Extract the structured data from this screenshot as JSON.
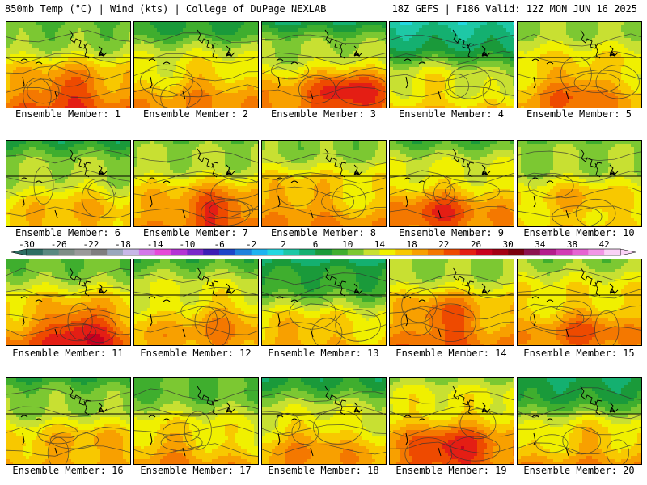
{
  "header": {
    "left": "850mb Temp (°C) | Wind (kts) | College of DuPage NEXLAB",
    "right": "18Z GEFS | F186 Valid: 12Z MON JUN 16 2025"
  },
  "colorbar": {
    "tick_labels": [
      "-30",
      "-26",
      "-22",
      "-18",
      "-14",
      "-10",
      "-6",
      "-2",
      "2",
      "6",
      "10",
      "14",
      "18",
      "22",
      "26",
      "30",
      "34",
      "38",
      "42"
    ],
    "bins": [
      {
        "min": -30,
        "color": "#2e6f63"
      },
      {
        "min": -28,
        "color": "#5a8a80"
      },
      {
        "min": -26,
        "color": "#7e8e86"
      },
      {
        "min": -24,
        "color": "#9a9a9a"
      },
      {
        "min": -22,
        "color": "#7f7f7f"
      },
      {
        "min": -20,
        "color": "#9aa8bc"
      },
      {
        "min": -18,
        "color": "#c8b8e8"
      },
      {
        "min": -16,
        "color": "#d478e8"
      },
      {
        "min": -14,
        "color": "#e64ad8"
      },
      {
        "min": -12,
        "color": "#b434d4"
      },
      {
        "min": -10,
        "color": "#7a28c8"
      },
      {
        "min": -8,
        "color": "#3c1eb4"
      },
      {
        "min": -6,
        "color": "#1c46c8"
      },
      {
        "min": -4,
        "color": "#1e82dc"
      },
      {
        "min": -2,
        "color": "#1eb4f0"
      },
      {
        "min": 0,
        "color": "#22d8e0"
      },
      {
        "min": 2,
        "color": "#1ec8a6"
      },
      {
        "min": 4,
        "color": "#14b070"
      },
      {
        "min": 6,
        "color": "#1a9a3a"
      },
      {
        "min": 8,
        "color": "#3fae2e"
      },
      {
        "min": 10,
        "color": "#7cc832"
      },
      {
        "min": 12,
        "color": "#c8e032"
      },
      {
        "min": 14,
        "color": "#f0f000"
      },
      {
        "min": 16,
        "color": "#f8c800"
      },
      {
        "min": 18,
        "color": "#f8a000"
      },
      {
        "min": 20,
        "color": "#f47800"
      },
      {
        "min": 22,
        "color": "#ee4a00"
      },
      {
        "min": 24,
        "color": "#e41e14"
      },
      {
        "min": 26,
        "color": "#c8001e"
      },
      {
        "min": 28,
        "color": "#a40014"
      },
      {
        "min": 30,
        "color": "#7a000e"
      },
      {
        "min": 32,
        "color": "#8c1450"
      },
      {
        "min": 34,
        "color": "#b41e8c"
      },
      {
        "min": 36,
        "color": "#d23cb4"
      },
      {
        "min": 38,
        "color": "#e664d2"
      },
      {
        "min": 40,
        "color": "#f296e6"
      },
      {
        "min": 42,
        "color": "#fad2f6"
      }
    ]
  },
  "members": [
    {
      "label": "Ensemble Member: 1",
      "north_temp": 9,
      "south_temp": 21,
      "hot_spot": 26
    },
    {
      "label": "Ensemble Member: 2",
      "north_temp": 8,
      "south_temp": 19,
      "hot_spot": 22
    },
    {
      "label": "Ensemble Member: 3",
      "north_temp": 7,
      "south_temp": 21,
      "hot_spot": 28
    },
    {
      "label": "Ensemble Member: 4",
      "north_temp": 2,
      "south_temp": 17,
      "hot_spot": 20
    },
    {
      "label": "Ensemble Member: 5",
      "north_temp": 12,
      "south_temp": 18,
      "hot_spot": 23
    },
    {
      "label": "Ensemble Member: 6",
      "north_temp": 8,
      "south_temp": 18,
      "hot_spot": 20
    },
    {
      "label": "Ensemble Member: 7",
      "north_temp": 10,
      "south_temp": 20,
      "hot_spot": 26
    },
    {
      "label": "Ensemble Member: 8",
      "north_temp": 11,
      "south_temp": 19,
      "hot_spot": 22
    },
    {
      "label": "Ensemble Member: 9",
      "north_temp": 10,
      "south_temp": 20,
      "hot_spot": 25
    },
    {
      "label": "Ensemble Member: 10",
      "north_temp": 10,
      "south_temp": 17,
      "hot_spot": 20
    },
    {
      "label": "Ensemble Member: 11",
      "north_temp": 10,
      "south_temp": 21,
      "hot_spot": 28
    },
    {
      "label": "Ensemble Member: 12",
      "north_temp": 10,
      "south_temp": 19,
      "hot_spot": 22
    },
    {
      "label": "Ensemble Member: 13",
      "north_temp": 5,
      "south_temp": 18,
      "hot_spot": 21
    },
    {
      "label": "Ensemble Member: 14",
      "north_temp": 11,
      "south_temp": 20,
      "hot_spot": 26
    },
    {
      "label": "Ensemble Member: 15",
      "north_temp": 12,
      "south_temp": 19,
      "hot_spot": 23
    },
    {
      "label": "Ensemble Member: 16",
      "north_temp": 8,
      "south_temp": 19,
      "hot_spot": 21
    },
    {
      "label": "Ensemble Member: 17",
      "north_temp": 9,
      "south_temp": 18,
      "hot_spot": 21
    },
    {
      "label": "Ensemble Member: 18",
      "north_temp": 8,
      "south_temp": 19,
      "hot_spot": 22
    },
    {
      "label": "Ensemble Member: 19",
      "north_temp": 12,
      "south_temp": 21,
      "hot_spot": 27
    },
    {
      "label": "Ensemble Member: 20",
      "north_temp": 5,
      "south_temp": 19,
      "hot_spot": 22
    }
  ]
}
